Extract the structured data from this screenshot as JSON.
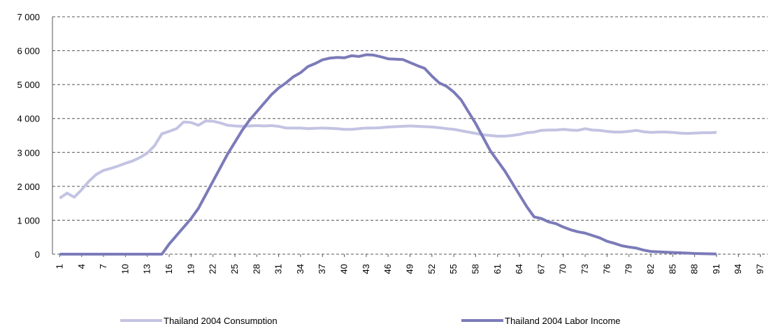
{
  "chart_data": {
    "type": "line",
    "x": [
      1,
      2,
      3,
      4,
      5,
      6,
      7,
      8,
      9,
      10,
      11,
      12,
      13,
      14,
      15,
      16,
      17,
      18,
      19,
      20,
      21,
      22,
      23,
      24,
      25,
      26,
      27,
      28,
      29,
      30,
      31,
      32,
      33,
      34,
      35,
      36,
      37,
      38,
      39,
      40,
      41,
      42,
      43,
      44,
      45,
      46,
      47,
      48,
      49,
      50,
      51,
      52,
      53,
      54,
      55,
      56,
      57,
      58,
      59,
      60,
      61,
      62,
      63,
      64,
      65,
      66,
      67,
      68,
      69,
      70,
      71,
      72,
      73,
      74,
      75,
      76,
      77,
      78,
      79,
      80,
      81,
      82,
      83,
      84,
      85,
      86,
      87,
      88,
      89,
      90,
      91
    ],
    "series": [
      {
        "name": "Thailand 2004 Consumption",
        "color": "#c3c3e3",
        "values": [
          1650,
          1800,
          1680,
          1900,
          2150,
          2350,
          2470,
          2530,
          2600,
          2680,
          2750,
          2850,
          2980,
          3200,
          3550,
          3620,
          3700,
          3900,
          3880,
          3800,
          3930,
          3920,
          3870,
          3800,
          3780,
          3770,
          3780,
          3790,
          3780,
          3790,
          3770,
          3720,
          3720,
          3720,
          3700,
          3710,
          3720,
          3710,
          3700,
          3680,
          3680,
          3700,
          3720,
          3720,
          3730,
          3750,
          3760,
          3770,
          3780,
          3770,
          3760,
          3750,
          3730,
          3700,
          3680,
          3640,
          3600,
          3560,
          3520,
          3500,
          3480,
          3480,
          3500,
          3530,
          3580,
          3600,
          3650,
          3660,
          3660,
          3680,
          3660,
          3650,
          3700,
          3660,
          3650,
          3620,
          3600,
          3600,
          3620,
          3650,
          3610,
          3590,
          3600,
          3600,
          3590,
          3570,
          3560,
          3570,
          3580,
          3580,
          3590
        ]
      },
      {
        "name": "Thailand 2004 Labor Income",
        "color": "#7b7bb9",
        "values": [
          0,
          0,
          0,
          0,
          0,
          0,
          0,
          0,
          0,
          0,
          0,
          0,
          0,
          0,
          0,
          300,
          550,
          800,
          1050,
          1350,
          1750,
          2150,
          2550,
          2950,
          3300,
          3650,
          3950,
          4200,
          4450,
          4700,
          4900,
          5050,
          5230,
          5350,
          5530,
          5620,
          5730,
          5780,
          5800,
          5790,
          5850,
          5830,
          5880,
          5870,
          5820,
          5760,
          5750,
          5740,
          5650,
          5560,
          5480,
          5250,
          5050,
          4950,
          4780,
          4550,
          4200,
          3850,
          3450,
          3050,
          2750,
          2450,
          2100,
          1750,
          1400,
          1100,
          1050,
          950,
          900,
          800,
          720,
          660,
          620,
          550,
          480,
          380,
          320,
          250,
          210,
          180,
          120,
          80,
          70,
          60,
          50,
          40,
          30,
          20,
          15,
          10,
          5
        ]
      }
    ],
    "xlim": [
      0,
      98
    ],
    "xticks": [
      1,
      4,
      7,
      10,
      13,
      16,
      19,
      22,
      25,
      28,
      31,
      34,
      37,
      40,
      43,
      46,
      49,
      52,
      55,
      58,
      61,
      64,
      67,
      70,
      73,
      76,
      79,
      82,
      85,
      88,
      91,
      94,
      97
    ],
    "ylim": [
      0,
      7000
    ],
    "yticks": [
      {
        "value": 0,
        "label": "0"
      },
      {
        "value": 1000,
        "label": "1 000"
      },
      {
        "value": 2000,
        "label": "2 000"
      },
      {
        "value": 3000,
        "label": "3 000"
      },
      {
        "value": 4000,
        "label": "4 000"
      },
      {
        "value": 5000,
        "label": "5 000"
      },
      {
        "value": 6000,
        "label": "6 000"
      },
      {
        "value": 7000,
        "label": "7 000"
      }
    ],
    "grid": true
  }
}
